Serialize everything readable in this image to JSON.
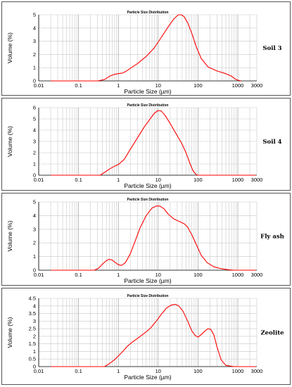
{
  "chart_data": [
    {
      "type": "line",
      "title": "Particle Size Distribution",
      "xlabel": "Particle Size (µm)",
      "ylabel": "Volume (%)",
      "sample": "Soil 3",
      "x_scale": "log",
      "xlim": [
        0.01,
        3000
      ],
      "ylim": [
        0,
        5
      ],
      "x_ticks": [
        "0.01",
        "0.1",
        "1",
        "10",
        "100",
        "1000",
        "3000"
      ],
      "y_ticks": [
        "0",
        "1",
        "2",
        "3",
        "4",
        "5"
      ],
      "grid": true,
      "color": "#ff0000",
      "x": [
        0.02,
        0.3,
        0.45,
        0.6,
        0.8,
        1.0,
        1.3,
        1.6,
        2,
        3,
        5,
        8,
        12,
        18,
        25,
        32,
        38,
        45,
        55,
        70,
        90,
        120,
        180,
        300,
        500,
        700,
        900,
        1200
      ],
      "y": [
        0,
        0,
        0.1,
        0.35,
        0.5,
        0.55,
        0.6,
        0.75,
        0.95,
        1.3,
        1.85,
        2.5,
        3.3,
        4.1,
        4.7,
        5.0,
        5.0,
        4.85,
        4.4,
        3.6,
        2.6,
        1.7,
        1.05,
        0.75,
        0.55,
        0.35,
        0.1,
        0
      ]
    },
    {
      "type": "line",
      "title": "Particle Size Distribution",
      "xlabel": "Particle Size (µm)",
      "ylabel": "Volume (%)",
      "sample": "Soil 4",
      "x_scale": "log",
      "xlim": [
        0.01,
        3000
      ],
      "ylim": [
        0,
        6
      ],
      "x_ticks": [
        "0.01",
        "0.1",
        "1",
        "10",
        "100",
        "1000",
        "3000"
      ],
      "y_ticks": [
        "0",
        "1",
        "2",
        "3",
        "4",
        "5",
        "6"
      ],
      "grid": true,
      "color": "#ff0000",
      "x": [
        0.02,
        0.35,
        0.45,
        0.6,
        0.8,
        1.0,
        1.4,
        2,
        3,
        4.5,
        6,
        8,
        10,
        12,
        15,
        20,
        28,
        38,
        50,
        62,
        75,
        90,
        100,
        2800
      ],
      "y": [
        0,
        0,
        0.25,
        0.55,
        0.8,
        0.95,
        1.4,
        2.3,
        3.3,
        4.3,
        4.9,
        5.5,
        5.75,
        5.7,
        5.3,
        4.6,
        3.7,
        2.9,
        2.0,
        1.1,
        0.4,
        0.05,
        0,
        0
      ]
    },
    {
      "type": "line",
      "title": "Particle Size Distribution",
      "xlabel": "Particle Size (µm)",
      "ylabel": "Volume (%)",
      "sample": "Fly ash",
      "x_scale": "log",
      "xlim": [
        0.01,
        3000
      ],
      "ylim": [
        0,
        5
      ],
      "x_ticks": [
        "0.01",
        "0.1",
        "1",
        "10",
        "100",
        "1000",
        "3000"
      ],
      "y_ticks": [
        "0",
        "1",
        "2",
        "3",
        "4",
        "5"
      ],
      "grid": true,
      "color": "#ff0000",
      "x": [
        0.02,
        0.25,
        0.32,
        0.4,
        0.5,
        0.6,
        0.7,
        0.85,
        1.0,
        1.2,
        1.5,
        2,
        2.7,
        3.5,
        5,
        7,
        9,
        11,
        14,
        18,
        25,
        35,
        45,
        55,
        70,
        90,
        120,
        170,
        250,
        400,
        600,
        800,
        2800
      ],
      "y": [
        0,
        0,
        0.15,
        0.45,
        0.7,
        0.8,
        0.75,
        0.55,
        0.4,
        0.35,
        0.55,
        1.2,
        2.2,
        3.1,
        4.0,
        4.55,
        4.7,
        4.7,
        4.5,
        4.1,
        3.75,
        3.55,
        3.4,
        3.15,
        2.6,
        1.9,
        1.1,
        0.55,
        0.25,
        0.1,
        0.03,
        0,
        0
      ]
    },
    {
      "type": "line",
      "title": "Particle Size Distribution",
      "xlabel": "Particle Size (µm)",
      "ylabel": "Volume (%)",
      "sample": "Zeolite",
      "x_scale": "log",
      "xlim": [
        0.01,
        3000
      ],
      "ylim": [
        0,
        4.5
      ],
      "x_ticks": [
        "0.01",
        "0.1",
        "1",
        "10",
        "100",
        "1000",
        "3000"
      ],
      "y_ticks": [
        "0",
        "0.5",
        "1",
        "1.5",
        "2",
        "2.5",
        "3",
        "3.5",
        "4",
        "4.5"
      ],
      "grid": true,
      "color": "#ff0000",
      "x": [
        0.02,
        0.45,
        0.6,
        0.8,
        1.0,
        1.3,
        1.7,
        2.2,
        3,
        4.5,
        6.5,
        9,
        12,
        16,
        21,
        27,
        33,
        42,
        55,
        70,
        85,
        100,
        120,
        150,
        180,
        210,
        250,
        300,
        380,
        500,
        800,
        2800
      ],
      "y": [
        0,
        0,
        0.2,
        0.45,
        0.7,
        1.0,
        1.35,
        1.6,
        1.85,
        2.2,
        2.55,
        3.0,
        3.45,
        3.85,
        4.05,
        4.1,
        4.0,
        3.65,
        3.0,
        2.35,
        2.05,
        1.95,
        2.1,
        2.35,
        2.5,
        2.45,
        2.1,
        1.3,
        0.45,
        0.08,
        0,
        0
      ]
    }
  ]
}
